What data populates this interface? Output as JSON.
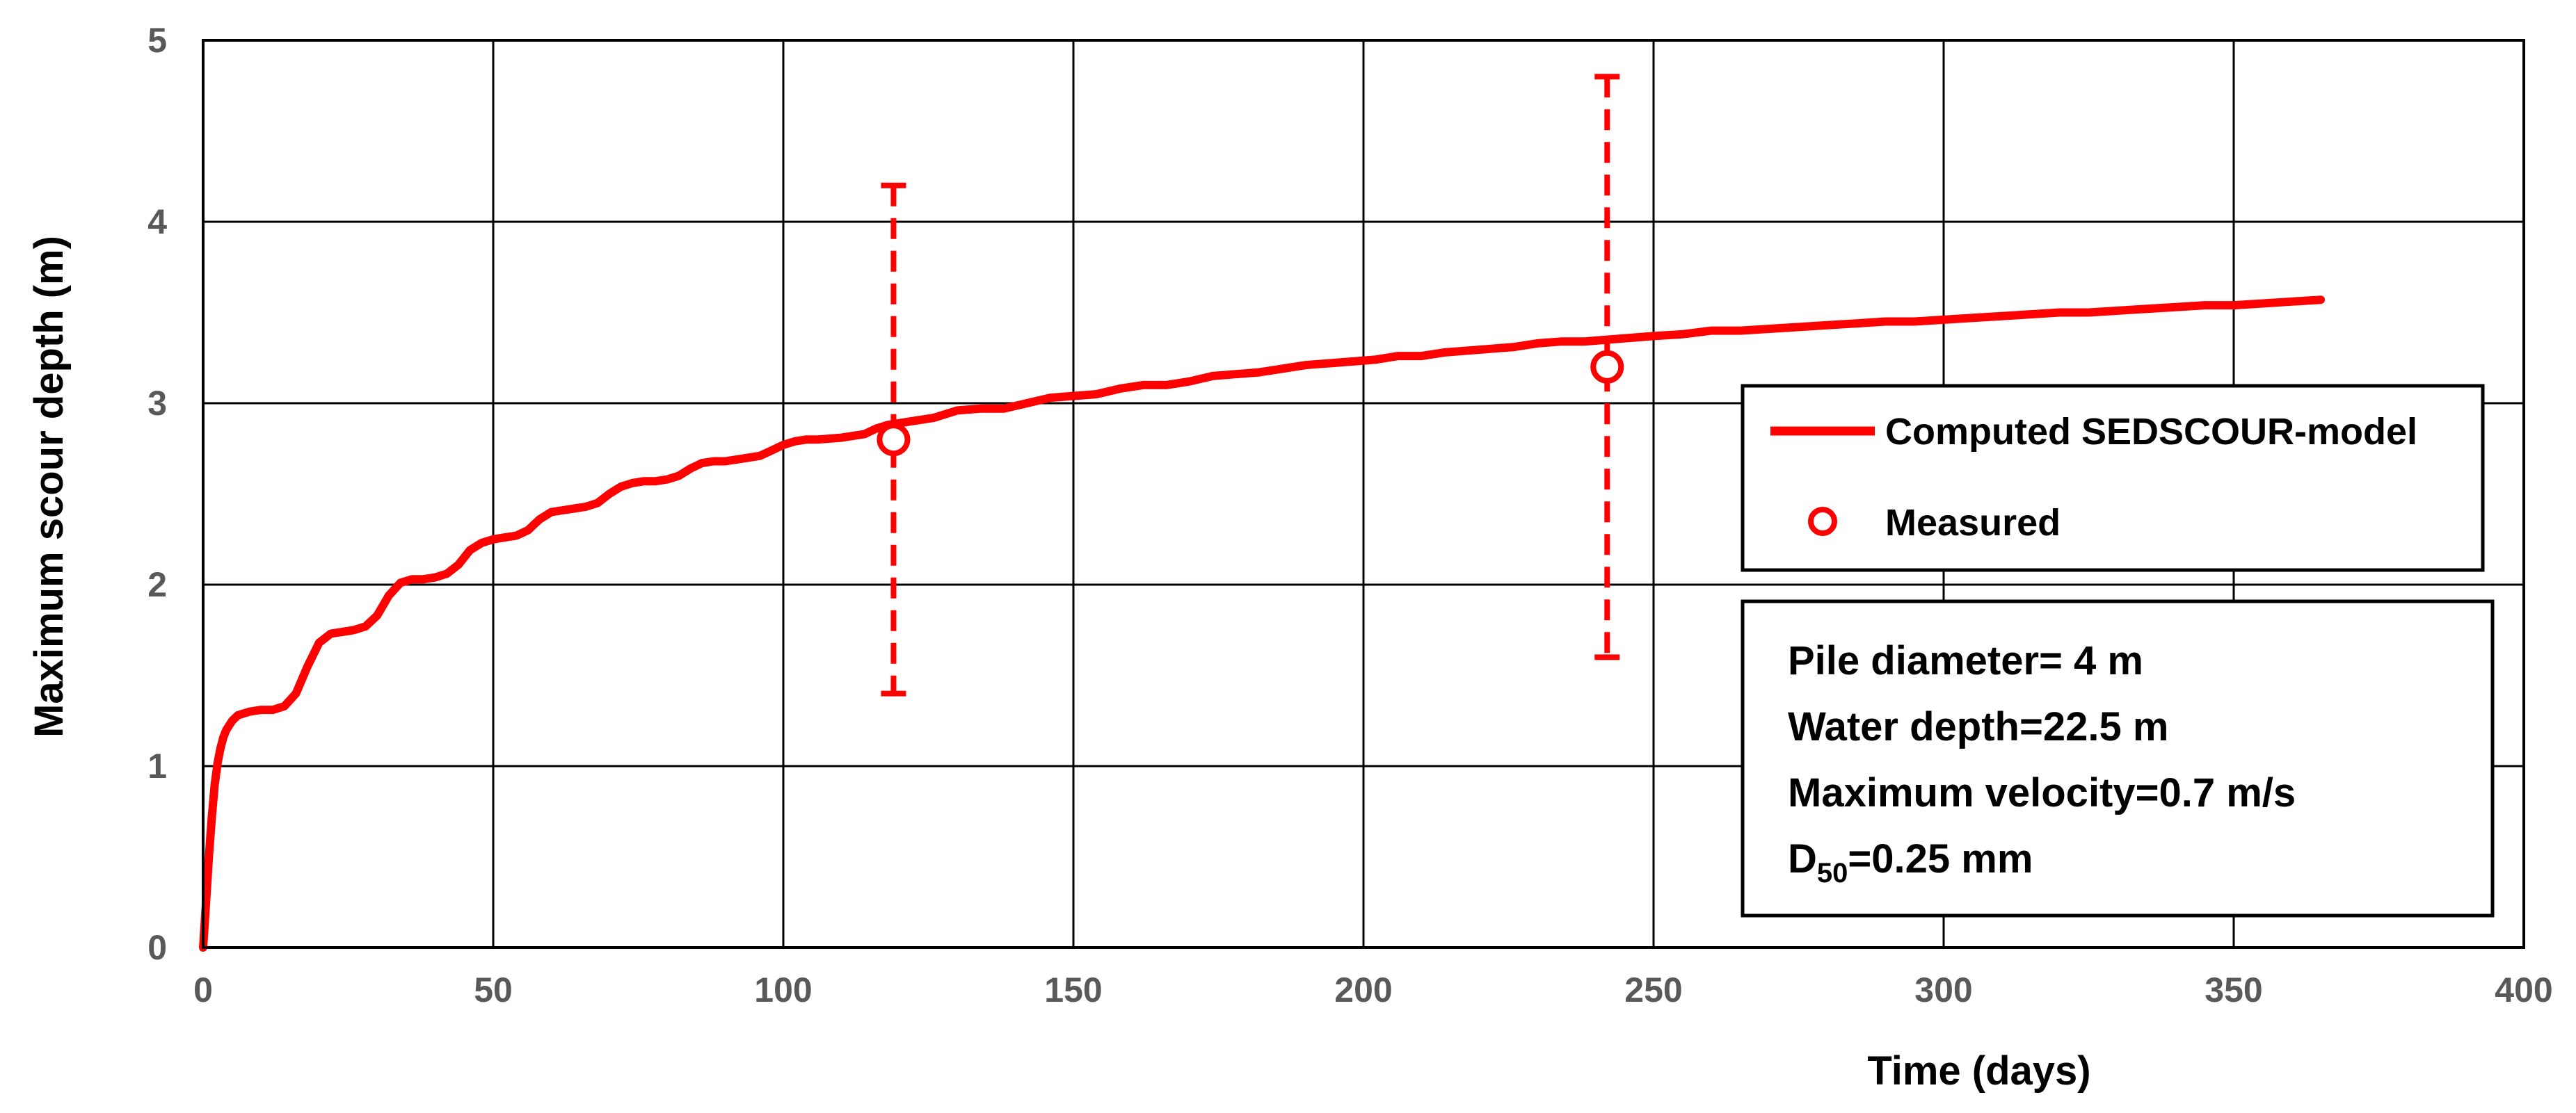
{
  "chart_data": {
    "type": "line",
    "xlabel": "Time (days)",
    "ylabel": "Maximum scour depth (m)",
    "xlim": [
      0,
      400
    ],
    "ylim": [
      0,
      5
    ],
    "x_ticks": [
      "0",
      "50",
      "100",
      "150",
      "200",
      "250",
      "300",
      "350",
      "400"
    ],
    "y_ticks": [
      "0",
      "1",
      "2",
      "3",
      "4",
      "5"
    ],
    "grid": true,
    "legend_position": "right",
    "series": [
      {
        "name": "Computed SEDSCOUR-model",
        "style": "line",
        "color": "#ff0000",
        "x": [
          0,
          0.5,
          1,
          1.5,
          2,
          2.5,
          3,
          3.5,
          4,
          5,
          6,
          8,
          10,
          12,
          14,
          16,
          18,
          20,
          22,
          24,
          26,
          28,
          30,
          32,
          34,
          36,
          38,
          40,
          42,
          44,
          46,
          48,
          50,
          52,
          54,
          56,
          58,
          60,
          62,
          64,
          66,
          68,
          70,
          72,
          74,
          76,
          78,
          80,
          82,
          84,
          86,
          88,
          90,
          92,
          94,
          96,
          98,
          100,
          102,
          104,
          106,
          110,
          114,
          116,
          118,
          120,
          122,
          126,
          130,
          134,
          138,
          142,
          146,
          150,
          154,
          158,
          162,
          166,
          170,
          174,
          178,
          182,
          186,
          190,
          194,
          198,
          202,
          206,
          210,
          214,
          218,
          222,
          226,
          230,
          234,
          238,
          242,
          246,
          250,
          255,
          260,
          265,
          270,
          275,
          280,
          285,
          290,
          295,
          300,
          305,
          310,
          315,
          320,
          325,
          330,
          335,
          340,
          345,
          350,
          355,
          360,
          365
        ],
        "y": [
          0,
          0.25,
          0.5,
          0.72,
          0.9,
          1.02,
          1.1,
          1.16,
          1.2,
          1.25,
          1.28,
          1.3,
          1.31,
          1.31,
          1.33,
          1.4,
          1.55,
          1.68,
          1.73,
          1.74,
          1.75,
          1.77,
          1.83,
          1.94,
          2.01,
          2.03,
          2.03,
          2.04,
          2.06,
          2.11,
          2.19,
          2.23,
          2.25,
          2.26,
          2.27,
          2.3,
          2.36,
          2.4,
          2.41,
          2.42,
          2.43,
          2.45,
          2.5,
          2.54,
          2.56,
          2.57,
          2.57,
          2.58,
          2.6,
          2.64,
          2.67,
          2.68,
          2.68,
          2.69,
          2.7,
          2.71,
          2.74,
          2.77,
          2.79,
          2.8,
          2.8,
          2.81,
          2.83,
          2.86,
          2.88,
          2.89,
          2.9,
          2.92,
          2.96,
          2.97,
          2.97,
          3.0,
          3.03,
          3.04,
          3.05,
          3.08,
          3.1,
          3.1,
          3.12,
          3.15,
          3.16,
          3.17,
          3.19,
          3.21,
          3.22,
          3.23,
          3.24,
          3.26,
          3.26,
          3.28,
          3.29,
          3.3,
          3.31,
          3.33,
          3.34,
          3.34,
          3.35,
          3.36,
          3.37,
          3.38,
          3.4,
          3.4,
          3.41,
          3.42,
          3.43,
          3.44,
          3.45,
          3.45,
          3.46,
          3.47,
          3.48,
          3.49,
          3.5,
          3.5,
          3.51,
          3.52,
          3.53,
          3.54,
          3.54,
          3.55,
          3.56,
          3.57
        ]
      },
      {
        "name": "Measured",
        "style": "scatter",
        "color": "#ff0000",
        "x": [
          119,
          242
        ],
        "y": [
          2.8,
          3.2
        ],
        "error_low": [
          1.4,
          1.6
        ],
        "error_high": [
          4.2,
          4.8
        ]
      }
    ],
    "annotation": {
      "lines": [
        {
          "text": "Pile diameter= 4 m"
        },
        {
          "text": "Water depth=22.5 m"
        },
        {
          "text": "Maximum velocity=0.7 m/s"
        },
        {
          "main": "D",
          "sub": "50",
          "rest": "=0.25 mm"
        }
      ]
    }
  }
}
